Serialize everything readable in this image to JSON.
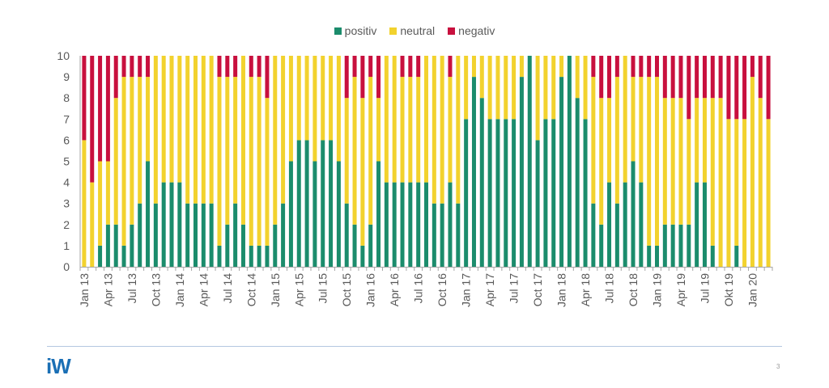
{
  "colors": {
    "positiv": "#1b8c6c",
    "neutral": "#f2d22e",
    "negativ": "#c8103e",
    "axis": "#a6a6a6",
    "text": "#595959"
  },
  "footer": {
    "logo_text": "iW",
    "page_number": "3"
  },
  "chart_data": {
    "type": "bar",
    "stacked": true,
    "title": "",
    "xlabel": "",
    "ylabel": "",
    "ylim": [
      0,
      10
    ],
    "yticks": [
      0,
      1,
      2,
      3,
      4,
      5,
      6,
      7,
      8,
      9,
      10
    ],
    "legend": {
      "position": "top-center",
      "entries": [
        "positiv",
        "neutral",
        "negativ"
      ]
    },
    "grid": false,
    "categories": [
      "Jan 13",
      "Feb 13",
      "Mar 13",
      "Apr 13",
      "May 13",
      "Jun 13",
      "Jul 13",
      "Aug 13",
      "Sep 13",
      "Oct 13",
      "Nov 13",
      "Dec 13",
      "Jan 14",
      "Feb 14",
      "Mar 14",
      "Apr 14",
      "May 14",
      "Jun 14",
      "Jul 14",
      "Aug 14",
      "Sep 14",
      "Oct 14",
      "Nov 14",
      "Dec 14",
      "Jan 15",
      "Feb 15",
      "Mar 15",
      "Apr 15",
      "May 15",
      "Jun 15",
      "Jul 15",
      "Aug 15",
      "Sep 15",
      "Oct 15",
      "Nov 15",
      "Dec 15",
      "Jan 16",
      "Feb 16",
      "Mar 16",
      "Apr 16",
      "May 16",
      "Jun 16",
      "Jul 16",
      "Aug 16",
      "Sep 16",
      "Oct 16",
      "Nov 16",
      "Dec 16",
      "Jan 17",
      "Feb 17",
      "Mar 17",
      "Apr 17",
      "May 17",
      "Jun 17",
      "Jul 17",
      "Aug 17",
      "Sep 17",
      "Oct 17",
      "Nov 17",
      "Dec 17",
      "Jan 18",
      "Feb 18",
      "Mar 18",
      "Apr 18",
      "May 18",
      "Jun 18",
      "Jul 18",
      "Aug 18",
      "Sep 18",
      "Oct 18",
      "Nov 18",
      "Dec 18",
      "Jan 19",
      "Feb 19",
      "Mar 19",
      "Apr 19",
      "May 19",
      "Jun 19",
      "Jul 19",
      "Aug 19",
      "Sep 19",
      "Okt 19",
      "Nov 19",
      "Dec 19",
      "Jan 20",
      "Feb 20",
      "Mar 20"
    ],
    "tick_labels_shown": [
      "Jan 13",
      "Apr 13",
      "Jul 13",
      "Oct 13",
      "Jan 14",
      "Apr 14",
      "Jul 14",
      "Oct 14",
      "Jan 15",
      "Apr 15",
      "Jul 15",
      "Oct 15",
      "Jan 16",
      "Apr 16",
      "Jul 16",
      "Oct 16",
      "Jan 17",
      "Apr 17",
      "Jul 17",
      "Oct 17",
      "Jan 18",
      "Apr 18",
      "Jul 18",
      "Oct 18",
      "Jan 19",
      "Apr 19",
      "Jul 19",
      "Okt 19",
      "Jan 20"
    ],
    "series": [
      {
        "name": "positiv",
        "values": [
          0,
          0,
          1,
          2,
          2,
          1,
          2,
          3,
          5,
          3,
          4,
          4,
          4,
          3,
          3,
          3,
          3,
          1,
          2,
          3,
          2,
          1,
          1,
          1,
          2,
          3,
          5,
          6,
          6,
          5,
          6,
          6,
          5,
          3,
          2,
          1,
          2,
          5,
          4,
          4,
          4,
          4,
          4,
          4,
          3,
          3,
          4,
          3,
          7,
          9,
          8,
          7,
          7,
          7,
          7,
          9,
          10,
          6,
          7,
          7,
          9,
          10,
          8,
          7,
          3,
          2,
          4,
          3,
          4,
          5,
          4,
          1,
          1,
          2,
          2,
          2,
          2,
          4,
          4,
          1,
          0,
          0,
          1,
          0,
          0,
          0,
          0
        ]
      },
      {
        "name": "neutral",
        "values": [
          6,
          4,
          4,
          3,
          6,
          8,
          7,
          6,
          4,
          7,
          6,
          6,
          6,
          7,
          7,
          7,
          7,
          8,
          7,
          6,
          8,
          8,
          8,
          7,
          8,
          7,
          5,
          4,
          4,
          5,
          4,
          4,
          5,
          5,
          7,
          7,
          7,
          3,
          6,
          6,
          5,
          5,
          5,
          6,
          7,
          7,
          5,
          7,
          3,
          1,
          2,
          3,
          3,
          3,
          3,
          1,
          0,
          4,
          3,
          3,
          1,
          0,
          2,
          3,
          6,
          6,
          4,
          6,
          6,
          4,
          5,
          8,
          8,
          6,
          6,
          6,
          5,
          4,
          4,
          7,
          8,
          7,
          6,
          7,
          9,
          8,
          7
        ]
      },
      {
        "name": "negativ",
        "values": [
          4,
          6,
          5,
          5,
          2,
          1,
          1,
          1,
          1,
          0,
          0,
          0,
          0,
          0,
          0,
          0,
          0,
          1,
          1,
          1,
          0,
          1,
          1,
          2,
          0,
          0,
          0,
          0,
          0,
          0,
          0,
          0,
          0,
          2,
          1,
          2,
          1,
          2,
          0,
          0,
          1,
          1,
          1,
          0,
          0,
          0,
          1,
          0,
          0,
          0,
          0,
          0,
          0,
          0,
          0,
          0,
          0,
          0,
          0,
          0,
          0,
          0,
          0,
          0,
          1,
          2,
          2,
          1,
          0,
          1,
          1,
          1,
          1,
          2,
          2,
          2,
          3,
          2,
          2,
          2,
          2,
          3,
          3,
          3,
          1,
          2,
          3
        ]
      }
    ]
  }
}
